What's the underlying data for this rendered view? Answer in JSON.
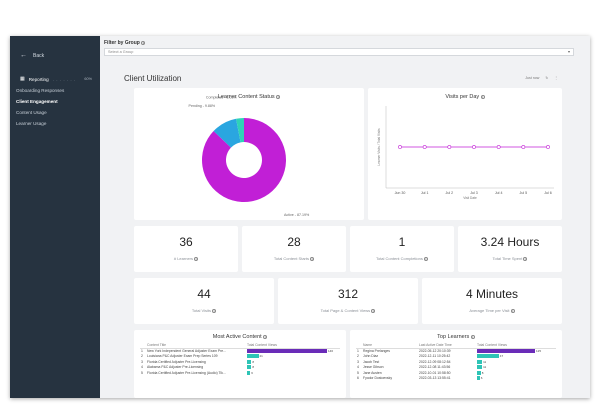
{
  "sidebar": {
    "back_label": "Back",
    "items": [
      {
        "label": "Reporting",
        "dots": ". . . . . . .",
        "pct": "60%"
      },
      {
        "label": "Onboarding Responses"
      },
      {
        "label": "Client Engagement"
      },
      {
        "label": "Content Usage"
      },
      {
        "label": "Learner Usage"
      }
    ]
  },
  "filter": {
    "label": "Filter by Group",
    "placeholder": "Select a Group"
  },
  "page": {
    "title": "Client Utilization",
    "action_label": "Just now"
  },
  "status_chart": {
    "title": "Learner Content Status",
    "slices": [
      {
        "name": "Active",
        "pct": 87.19,
        "label": "Active - 87.19%",
        "color": "#c11fd6"
      },
      {
        "name": "Pending",
        "pct": 9.88,
        "label": "Pending - 9.88%",
        "color": "#2aa6e0"
      },
      {
        "name": "Completed",
        "pct": 3.03,
        "label": "Completed - 3.03%",
        "color": "#2ed3b7"
      }
    ]
  },
  "visits_chart": {
    "title": "Visits per Day",
    "ylabel": "Learner Visits / Total Visits",
    "xlabel": "Visit Date",
    "x": [
      "Jun 30",
      "Jul 1",
      "Jul 2",
      "Jul 3",
      "Jul 4",
      "Jul 5",
      "Jul 6"
    ],
    "ylim": [
      0,
      2
    ],
    "values": [
      1,
      1,
      1,
      1,
      1,
      1,
      1
    ],
    "color": "#c11fd6"
  },
  "kpis_row1": [
    {
      "value": "36",
      "label": "# Learners"
    },
    {
      "value": "28",
      "label": "Total Content Starts"
    },
    {
      "value": "1",
      "label": "Total Content Completions"
    },
    {
      "value": "3.24 Hours",
      "label": "Total Time Spent"
    }
  ],
  "kpis_row2": [
    {
      "value": "44",
      "label": "Total Visits"
    },
    {
      "value": "312",
      "label": "Total Page & Content Views"
    },
    {
      "value": "4 Minutes",
      "label": "Average Time per Visit"
    }
  ],
  "active_content": {
    "title": "Most Active Content",
    "headers": [
      "Content Title",
      "Total Content Views"
    ],
    "rows": [
      {
        "n": "1",
        "title": "New York Independent General Adjuster Exam Pre...",
        "views": 146
      },
      {
        "n": "2",
        "title": "Louisiana P&C Adjuster Exam Prep Series 109",
        "views": 21
      },
      {
        "n": "3",
        "title": "Florida Certified Adjuster Pre-Licensing",
        "views": 8
      },
      {
        "n": "4",
        "title": "Alabama P&C Adjuster Pre-Licensing",
        "views": 8
      },
      {
        "n": "5",
        "title": "Florida Certified Adjuster Pre-Licensing (Audio) Tik...",
        "views": 6
      }
    ]
  },
  "top_learners": {
    "title": "Top Learners",
    "headers": [
      "Name",
      "Last Active Date Time",
      "Total Content Views"
    ],
    "rows": [
      {
        "n": "1",
        "name": "Regina Prelanges",
        "date": "2022-05-12 20:10:39",
        "views": 125
      },
      {
        "n": "2",
        "name": "John Diaz",
        "date": "2022-12-11 10:25:42",
        "views": 47
      },
      {
        "n": "3",
        "name": "Jacob Test",
        "date": "2022-12-09 08:12:54",
        "views": 11
      },
      {
        "n": "4",
        "name": "Jesse Gibson",
        "date": "2022-12-08 11:43:56",
        "views": 11
      },
      {
        "n": "5",
        "name": "Jane Austen",
        "date": "2022-10-01 10:58:50",
        "views": 8
      },
      {
        "n": "6",
        "name": "Fyodor Dostoevsky",
        "date": "2022-03-13 13:55:41",
        "views": 6
      }
    ]
  }
}
